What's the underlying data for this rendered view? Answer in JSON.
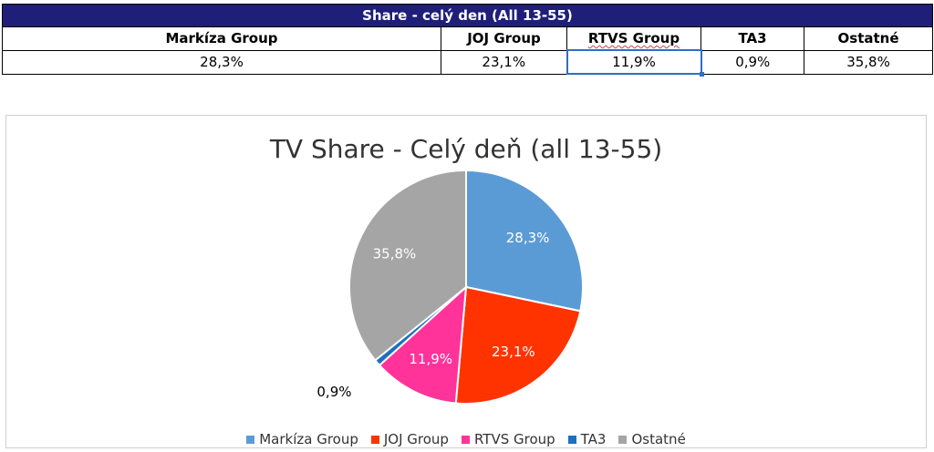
{
  "table": {
    "title": "Share - celý den (All 13-55)",
    "headers": [
      "Markíza Group",
      "JOJ Group",
      "RTVS Group",
      "TA3",
      "Ostatné"
    ],
    "values": [
      "28,3%",
      "23,1%",
      "11,9%",
      "0,9%",
      "35,8%"
    ]
  },
  "chart_data": {
    "type": "pie",
    "title": "TV Share - Celý deň (all 13-55)",
    "categories": [
      "Markíza Group",
      "JOJ Group",
      "RTVS Group",
      "TA3",
      "Ostatné"
    ],
    "values": [
      28.3,
      23.1,
      11.9,
      0.9,
      35.8
    ],
    "labels": [
      "28,3%",
      "23,1%",
      "11,9%",
      "0,9%",
      "35,8%"
    ],
    "colors": [
      "#5b9bd5",
      "#ff3300",
      "#ff3399",
      "#1f6fbf",
      "#a5a5a5"
    ],
    "legend_position": "bottom"
  }
}
